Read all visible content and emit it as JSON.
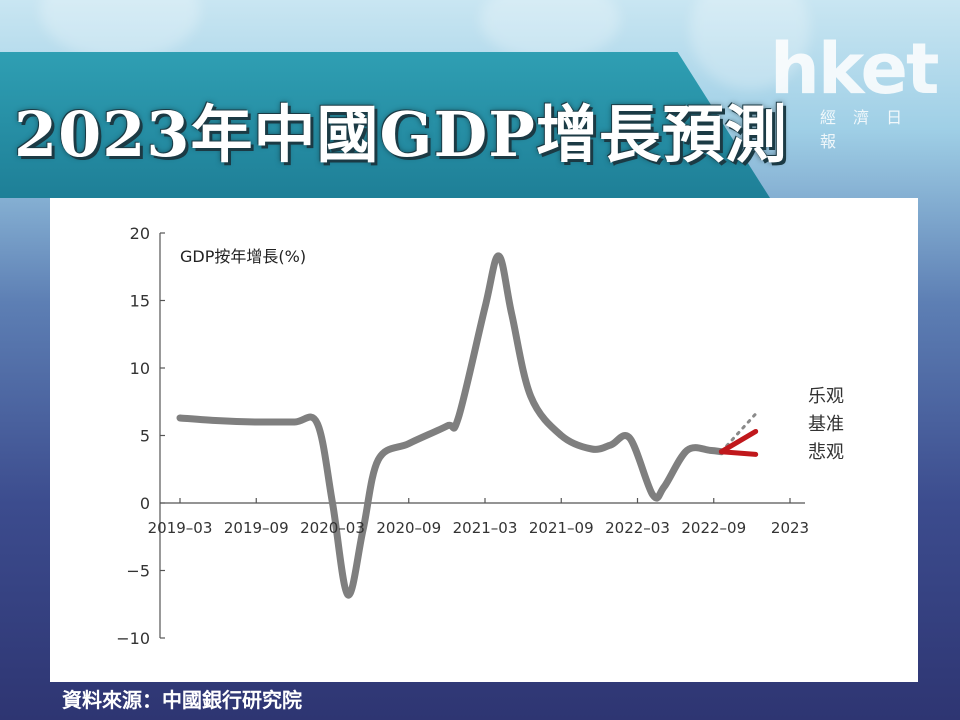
{
  "title": "2023年中國GDP增長預測",
  "logo": {
    "main": "hket",
    "sub": "經 濟 日 報"
  },
  "source": "資料來源：中國銀行研究院",
  "chart_data": {
    "type": "line",
    "ylabel": "GDP按年增長(%)",
    "ylim": [
      -10,
      20
    ],
    "yticks": [
      20,
      15,
      10,
      5,
      0,
      -5,
      -10
    ],
    "ytick_labels": [
      "20",
      "15",
      "10",
      "5",
      "0",
      "−5",
      "−10"
    ],
    "xticks": [
      "2019–03",
      "2019–09",
      "2020–03",
      "2020–09",
      "2021–03",
      "2021–09",
      "2022–03",
      "2022–09",
      "2023"
    ],
    "xlim": [
      0,
      8
    ],
    "series": [
      {
        "points": [
          [
            0,
            6.3
          ],
          [
            0.5,
            6.1
          ],
          [
            1,
            6.0
          ],
          [
            1.5,
            6.0
          ],
          [
            1.8,
            5.9
          ],
          [
            2,
            0.0
          ],
          [
            2.2,
            -6.8
          ],
          [
            2.4,
            -2.0
          ],
          [
            2.6,
            3.2
          ],
          [
            3,
            4.4
          ],
          [
            3.5,
            5.7
          ],
          [
            3.65,
            6.3
          ],
          [
            4,
            14.5
          ],
          [
            4.18,
            18.3
          ],
          [
            4.35,
            14.0
          ],
          [
            4.6,
            7.9
          ],
          [
            5,
            5.0
          ],
          [
            5.4,
            4.0
          ],
          [
            5.65,
            4.3
          ],
          [
            5.9,
            4.8
          ],
          [
            6.2,
            0.6
          ],
          [
            6.35,
            1.2
          ],
          [
            6.65,
            3.9
          ],
          [
            6.95,
            3.9
          ],
          [
            7.1,
            3.8
          ]
        ],
        "color": "#7f7f7f"
      }
    ],
    "scenarios": [
      {
        "label": "乐观",
        "points": [
          [
            7.1,
            3.8
          ],
          [
            7.55,
            6.6
          ]
        ],
        "color": "#8a8a8a",
        "style": "dotted"
      },
      {
        "label": "基准",
        "points": [
          [
            7.1,
            3.8
          ],
          [
            7.55,
            5.3
          ]
        ],
        "color": "#c0181c",
        "style": "solid"
      },
      {
        "label": "悲观",
        "points": [
          [
            7.1,
            3.8
          ],
          [
            7.55,
            3.6
          ]
        ],
        "color": "#c0181c",
        "style": "solid"
      }
    ]
  }
}
